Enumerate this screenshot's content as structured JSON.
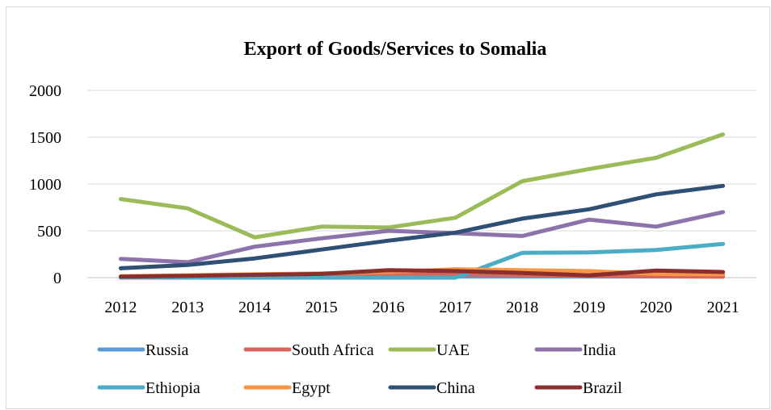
{
  "chart_data": {
    "type": "line",
    "title": "Export of Goods/Services to Somalia",
    "xlabel": "",
    "ylabel": "",
    "x": [
      "2012",
      "2013",
      "2014",
      "2015",
      "2016",
      "2017",
      "2018",
      "2019",
      "2020",
      "2021"
    ],
    "ylim": [
      0,
      2000
    ],
    "yticks": [
      "0",
      "500",
      "1000",
      "1500",
      "2000"
    ],
    "grid": true,
    "legend_position": "bottom",
    "series": [
      {
        "name": "Russia",
        "color": "#5b9bd5",
        "values": [
          5,
          8,
          10,
          12,
          12,
          12,
          12,
          12,
          12,
          12
        ]
      },
      {
        "name": "South Africa",
        "color": "#d9655b",
        "values": [
          10,
          15,
          20,
          25,
          30,
          35,
          25,
          20,
          15,
          10
        ]
      },
      {
        "name": "UAE",
        "color": "#9bbb59",
        "values": [
          840,
          740,
          430,
          545,
          535,
          640,
          1030,
          1160,
          1280,
          1530
        ]
      },
      {
        "name": "India",
        "color": "#8e72ac",
        "values": [
          200,
          165,
          330,
          420,
          500,
          475,
          445,
          620,
          545,
          700
        ]
      },
      {
        "name": "Ethiopia",
        "color": "#4bacc6",
        "values": [
          0,
          0,
          0,
          0,
          0,
          0,
          265,
          270,
          295,
          360
        ]
      },
      {
        "name": "Egypt",
        "color": "#f79646",
        "values": [
          15,
          25,
          35,
          45,
          60,
          90,
          80,
          70,
          40,
          35
        ]
      },
      {
        "name": "China",
        "color": "#2f4f75",
        "values": [
          100,
          135,
          205,
          300,
          395,
          480,
          630,
          730,
          890,
          980
        ]
      },
      {
        "name": "Brazil",
        "color": "#8b2e2e",
        "values": [
          10,
          20,
          30,
          40,
          80,
          70,
          50,
          25,
          75,
          60
        ]
      }
    ]
  }
}
